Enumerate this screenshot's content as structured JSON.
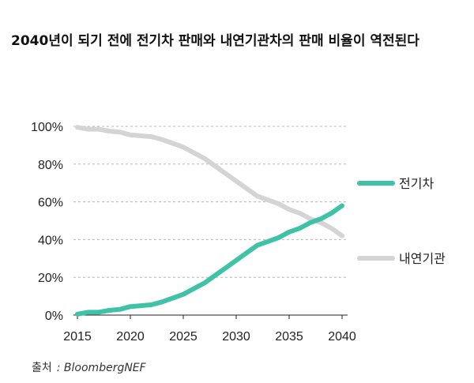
{
  "page_title": "2040년이 되기 전에 전기차 판매와 내연기관차의 판매 비율이 역전된다",
  "source": {
    "label": "출처",
    "name": ": BloombergNEF"
  },
  "colors": {
    "ev": "#40c2a6",
    "ice": "#d4d4d4",
    "grid": "#b8b8b8",
    "axis": "#222222"
  },
  "chart_data": {
    "type": "line",
    "title": "2040년이 되기 전에 전기차 판매와 내연기관차의 판매 비율이 역전된다",
    "xlabel": "",
    "ylabel": "",
    "xlim": [
      2015,
      2040
    ],
    "ylim": [
      0,
      100
    ],
    "x_ticks": [
      2015,
      2020,
      2025,
      2030,
      2035,
      2040
    ],
    "y_ticks": [
      0,
      20,
      40,
      60,
      80,
      100
    ],
    "y_tick_labels": [
      "0%",
      "20%",
      "40%",
      "60%",
      "80%",
      "100%"
    ],
    "grid": "horizontal dashed",
    "legend_position": "right",
    "series": [
      {
        "name": "전기차",
        "color": "#40c2a6",
        "x": [
          2015,
          2016,
          2017,
          2018,
          2019,
          2020,
          2021,
          2022,
          2023,
          2024,
          2025,
          2026,
          2027,
          2028,
          2029,
          2030,
          2031,
          2032,
          2033,
          2034,
          2035,
          2036,
          2037,
          2038,
          2039,
          2040
        ],
        "values": [
          0.5,
          1.5,
          1.5,
          2.5,
          3,
          4.5,
          5,
          5.5,
          7,
          9,
          11,
          14,
          17,
          21,
          25,
          29,
          33,
          37,
          39,
          41,
          44,
          46,
          49,
          51,
          54,
          58
        ]
      },
      {
        "name": "내연기관",
        "color": "#d4d4d4",
        "x": [
          2015,
          2016,
          2017,
          2018,
          2019,
          2020,
          2021,
          2022,
          2023,
          2024,
          2025,
          2026,
          2027,
          2028,
          2029,
          2030,
          2031,
          2032,
          2033,
          2034,
          2035,
          2036,
          2037,
          2038,
          2039,
          2040
        ],
        "values": [
          99.5,
          98.5,
          98.5,
          97.5,
          97,
          95.5,
          95,
          94.5,
          93,
          91,
          89,
          86,
          83,
          79,
          75,
          71,
          67,
          63,
          61,
          59,
          56,
          54,
          51,
          49,
          46,
          42
        ]
      }
    ]
  }
}
